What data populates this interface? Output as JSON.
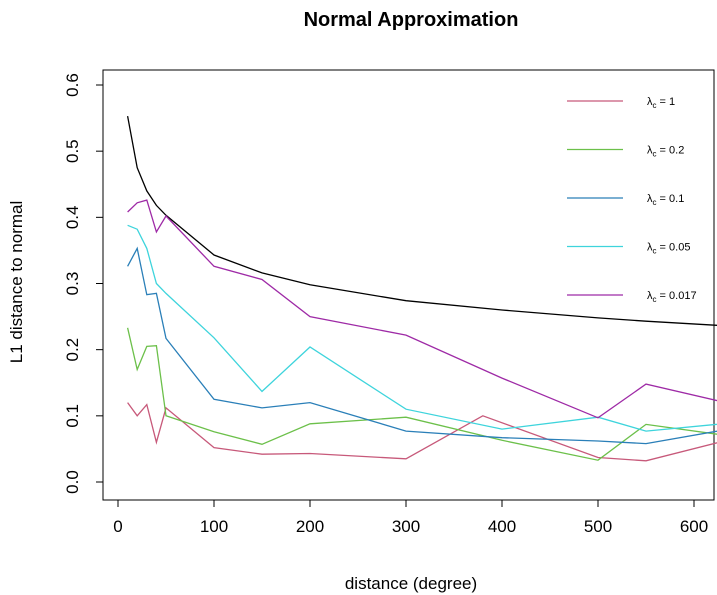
{
  "chart_data": {
    "type": "line",
    "title": "Normal Approximation",
    "xlabel": "distance (degree)",
    "ylabel": "L1 distance to normal",
    "xlim": [
      0,
      650
    ],
    "ylim": [
      -0.02,
      0.62
    ],
    "xticks": [
      0,
      100,
      200,
      300,
      400,
      500,
      600
    ],
    "yticks": [
      0.0,
      0.1,
      0.2,
      0.3,
      0.4,
      0.5,
      0.6
    ],
    "xtick_labels": [
      "0",
      "100",
      "200",
      "300",
      "400",
      "500",
      "600"
    ],
    "ytick_labels": [
      "0.0",
      "0.1",
      "0.2",
      "0.3",
      "0.4",
      "0.5",
      "0.6"
    ],
    "grid": false,
    "legend_position": "top-right",
    "reference": {
      "color": "#000000",
      "x": [
        10,
        20,
        30,
        40,
        50,
        100,
        150,
        200,
        300,
        400,
        500,
        550,
        645
      ],
      "y": [
        0.553,
        0.475,
        0.44,
        0.418,
        0.403,
        0.343,
        0.316,
        0.298,
        0.274,
        0.26,
        0.248,
        0.243,
        0.235
      ]
    },
    "series": [
      {
        "name_prefix": "λ",
        "name_sub": "c",
        "name_suffix": " = 1",
        "color": "#C7597A",
        "x": [
          10,
          20,
          30,
          40,
          50,
          100,
          150,
          200,
          300,
          380,
          500,
          550,
          645
        ],
        "y": [
          0.12,
          0.1,
          0.117,
          0.06,
          0.112,
          0.052,
          0.042,
          0.043,
          0.035,
          0.1,
          0.037,
          0.032,
          0.067
        ]
      },
      {
        "name_prefix": "λ",
        "name_sub": "c",
        "name_suffix": " = 0.2",
        "color": "#6CC04A",
        "x": [
          10,
          20,
          30,
          40,
          50,
          100,
          150,
          200,
          300,
          400,
          500,
          550,
          645
        ],
        "y": [
          0.233,
          0.17,
          0.205,
          0.206,
          0.1,
          0.076,
          0.057,
          0.088,
          0.098,
          0.063,
          0.033,
          0.087,
          0.068
        ]
      },
      {
        "name_prefix": "λ",
        "name_sub": "c",
        "name_suffix": " = 0.1",
        "color": "#2A7FB8",
        "x": [
          10,
          20,
          30,
          40,
          50,
          100,
          150,
          200,
          300,
          400,
          500,
          550,
          645
        ],
        "y": [
          0.326,
          0.353,
          0.283,
          0.285,
          0.217,
          0.125,
          0.112,
          0.12,
          0.077,
          0.067,
          0.062,
          0.058,
          0.082
        ]
      },
      {
        "name_prefix": "λ",
        "name_sub": "c",
        "name_suffix": " = 0.05",
        "color": "#3ED4DC",
        "x": [
          10,
          20,
          30,
          40,
          50,
          100,
          150,
          200,
          300,
          400,
          500,
          550,
          645
        ],
        "y": [
          0.388,
          0.382,
          0.353,
          0.3,
          0.285,
          0.218,
          0.137,
          0.204,
          0.11,
          0.08,
          0.098,
          0.077,
          0.09
        ]
      },
      {
        "name_prefix": "λ",
        "name_sub": "c",
        "name_suffix": " = 0.017",
        "color": "#9E2AA6",
        "x": [
          10,
          20,
          30,
          40,
          50,
          100,
          150,
          200,
          300,
          400,
          500,
          550,
          645
        ],
        "y": [
          0.408,
          0.422,
          0.426,
          0.378,
          0.402,
          0.326,
          0.306,
          0.25,
          0.222,
          0.157,
          0.097,
          0.148,
          0.116
        ]
      }
    ]
  }
}
